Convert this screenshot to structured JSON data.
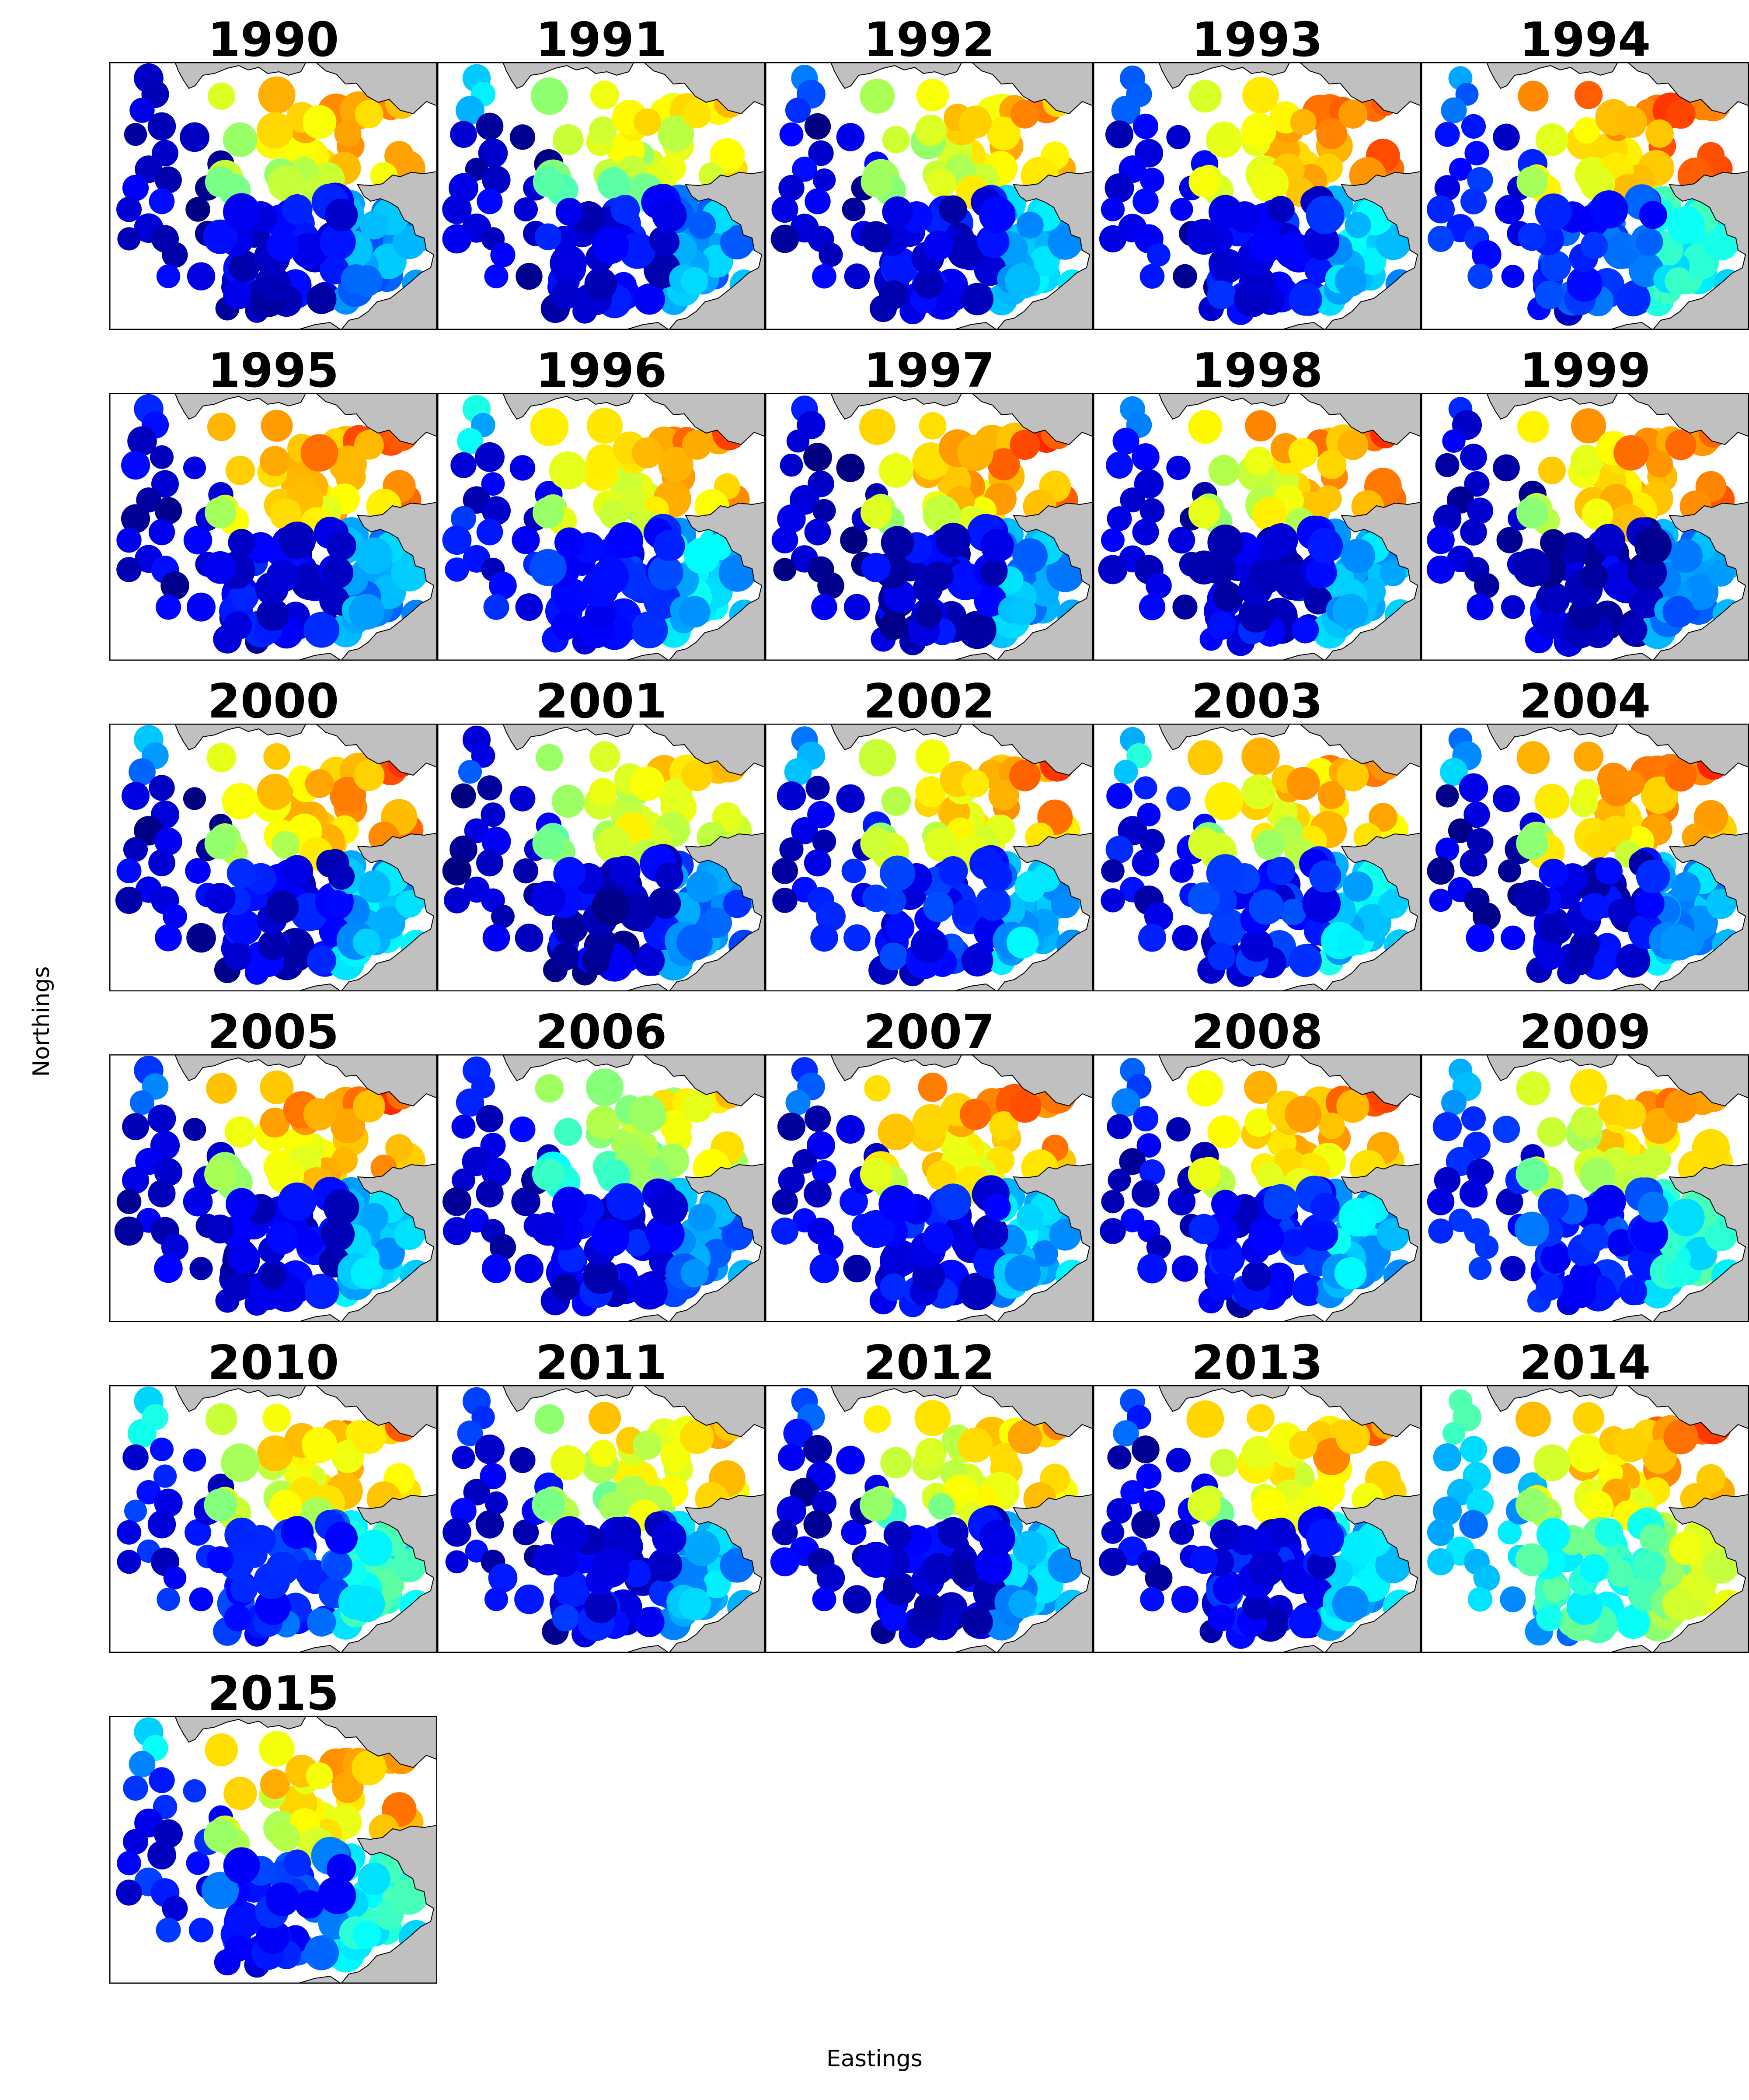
{
  "figure": {
    "xlabel": "Eastings",
    "ylabel": "Northings",
    "colormap": "jet",
    "land_color": "#c0c0c0",
    "coast_color": "#000000"
  },
  "panels": [
    {
      "year": "1990",
      "pattern": {
        "north": 0.78,
        "south": 0.1,
        "east_south": 0.26,
        "west_top": 0.05
      }
    },
    {
      "year": "1991",
      "pattern": {
        "north": 0.72,
        "south": 0.1,
        "east_south": 0.28,
        "west_top": 0.3
      }
    },
    {
      "year": "1992",
      "pattern": {
        "north": 0.76,
        "south": 0.1,
        "east_south": 0.3,
        "west_top": 0.22
      }
    },
    {
      "year": "1993",
      "pattern": {
        "north": 0.82,
        "south": 0.12,
        "east_south": 0.32,
        "west_top": 0.18
      }
    },
    {
      "year": "1994",
      "pattern": {
        "north": 0.85,
        "south": 0.18,
        "east_south": 0.38,
        "west_top": 0.25
      }
    },
    {
      "year": "1995",
      "pattern": {
        "north": 0.82,
        "south": 0.1,
        "east_south": 0.28,
        "west_top": 0.12
      }
    },
    {
      "year": "1996",
      "pattern": {
        "north": 0.78,
        "south": 0.16,
        "east_south": 0.32,
        "west_top": 0.35
      }
    },
    {
      "year": "1997",
      "pattern": {
        "north": 0.82,
        "south": 0.08,
        "east_south": 0.28,
        "west_top": 0.1
      }
    },
    {
      "year": "1998",
      "pattern": {
        "north": 0.8,
        "south": 0.1,
        "east_south": 0.3,
        "west_top": 0.2
      }
    },
    {
      "year": "1999",
      "pattern": {
        "north": 0.82,
        "south": 0.08,
        "east_south": 0.26,
        "west_top": 0.1
      }
    },
    {
      "year": "2000",
      "pattern": {
        "north": 0.8,
        "south": 0.1,
        "east_south": 0.3,
        "west_top": 0.25
      }
    },
    {
      "year": "2001",
      "pattern": {
        "north": 0.74,
        "south": 0.08,
        "east_south": 0.24,
        "west_top": 0.15
      }
    },
    {
      "year": "2002",
      "pattern": {
        "north": 0.8,
        "south": 0.14,
        "east_south": 0.3,
        "west_top": 0.3
      }
    },
    {
      "year": "2003",
      "pattern": {
        "north": 0.78,
        "south": 0.14,
        "east_south": 0.34,
        "west_top": 0.35
      }
    },
    {
      "year": "2004",
      "pattern": {
        "north": 0.82,
        "south": 0.1,
        "east_south": 0.3,
        "west_top": 0.28
      }
    },
    {
      "year": "2005",
      "pattern": {
        "north": 0.82,
        "south": 0.1,
        "east_south": 0.3,
        "west_top": 0.22
      }
    },
    {
      "year": "2006",
      "pattern": {
        "north": 0.68,
        "south": 0.1,
        "east_south": 0.26,
        "west_top": 0.2
      }
    },
    {
      "year": "2007",
      "pattern": {
        "north": 0.82,
        "south": 0.12,
        "east_south": 0.3,
        "west_top": 0.2
      }
    },
    {
      "year": "2008",
      "pattern": {
        "north": 0.8,
        "south": 0.12,
        "east_south": 0.32,
        "west_top": 0.25
      }
    },
    {
      "year": "2009",
      "pattern": {
        "north": 0.78,
        "south": 0.18,
        "east_south": 0.4,
        "west_top": 0.32
      }
    },
    {
      "year": "2010",
      "pattern": {
        "north": 0.78,
        "south": 0.18,
        "east_south": 0.4,
        "west_top": 0.35
      }
    },
    {
      "year": "2011",
      "pattern": {
        "north": 0.74,
        "south": 0.12,
        "east_south": 0.3,
        "west_top": 0.2
      }
    },
    {
      "year": "2012",
      "pattern": {
        "north": 0.74,
        "south": 0.1,
        "east_south": 0.3,
        "west_top": 0.2
      }
    },
    {
      "year": "2013",
      "pattern": {
        "north": 0.78,
        "south": 0.12,
        "east_south": 0.32,
        "west_top": 0.2
      }
    },
    {
      "year": "2014",
      "pattern": {
        "north": 0.82,
        "south": 0.42,
        "east_south": 0.55,
        "west_top": 0.45
      }
    },
    {
      "year": "2015",
      "pattern": {
        "north": 0.8,
        "south": 0.18,
        "east_south": 0.4,
        "west_top": 0.32
      }
    }
  ]
}
